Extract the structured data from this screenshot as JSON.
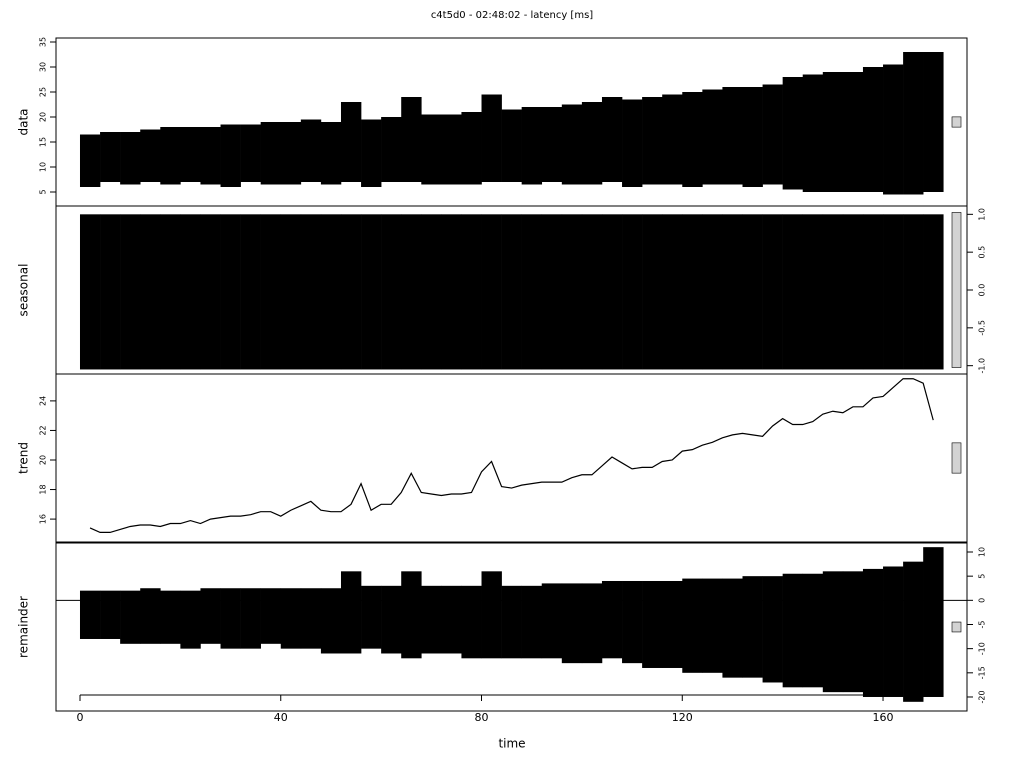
{
  "chart_data": [
    {
      "type": "band",
      "title": "c4t5d0 - 02:48:02 - latency [ms]",
      "ylabel": "data",
      "axis_side": "left",
      "color": "#000000",
      "xlim": [
        -4.78,
        176.73
      ],
      "ylim": [
        2.2,
        35.8
      ],
      "yticks": [
        5,
        10,
        15,
        20,
        25,
        30,
        35
      ],
      "x": [
        2,
        6,
        10,
        14,
        18,
        22,
        26,
        30,
        34,
        38,
        42,
        46,
        50,
        54,
        58,
        62,
        66,
        70,
        74,
        78,
        82,
        86,
        90,
        94,
        98,
        102,
        106,
        110,
        114,
        118,
        122,
        126,
        130,
        134,
        138,
        142,
        146,
        150,
        154,
        158,
        162,
        166,
        170
      ],
      "upper": [
        16.5,
        17,
        17,
        17.5,
        18,
        18,
        18,
        18.5,
        18.5,
        19,
        19,
        19.5,
        19,
        23,
        19.5,
        20,
        24,
        20.5,
        20.5,
        21,
        24.5,
        21.5,
        22,
        22,
        22.5,
        23,
        24,
        23.5,
        24,
        24.5,
        25,
        25.5,
        26,
        26,
        26.5,
        28,
        28.5,
        29,
        29,
        30,
        30.5,
        33,
        33
      ],
      "lower": [
        6,
        7,
        6.5,
        7,
        6.5,
        7,
        6.5,
        6,
        7,
        6.5,
        6.5,
        7,
        6.5,
        7,
        6,
        7,
        7,
        6.5,
        6.5,
        6.5,
        7,
        7,
        6.5,
        7,
        6.5,
        6.5,
        7,
        6,
        6.5,
        6.5,
        6,
        6.5,
        6.5,
        6,
        6.5,
        5.5,
        5,
        5,
        5,
        5,
        4.5,
        4.5,
        5
      ]
    },
    {
      "type": "band",
      "ylabel": "seasonal",
      "axis_side": "right",
      "color": "#000000",
      "xlim": [
        -4.78,
        176.73
      ],
      "ylim": [
        -1.11,
        1.11
      ],
      "yticks": [
        {
          "value": -1,
          "label": "-1.0"
        },
        {
          "value": -0.5,
          "label": "-0.5"
        },
        {
          "value": 0,
          "label": "0.0"
        },
        {
          "value": 0.5,
          "label": "0.5"
        },
        {
          "value": 1,
          "label": "1.0"
        }
      ],
      "x": [
        2,
        6,
        10,
        14,
        18,
        22,
        26,
        30,
        34,
        38,
        42,
        46,
        50,
        54,
        58,
        62,
        66,
        70,
        74,
        78,
        82,
        86,
        90,
        94,
        98,
        102,
        106,
        110,
        114,
        118,
        122,
        126,
        130,
        134,
        138,
        142,
        146,
        150,
        154,
        158,
        162,
        166,
        170
      ],
      "upper": [
        1.0,
        1.0,
        1.0,
        1.0,
        1.0,
        1.0,
        1.0,
        1.0,
        1.0,
        1.0,
        1.0,
        1.0,
        1.0,
        1.0,
        1.0,
        1.0,
        1.0,
        1.0,
        1.0,
        1.0,
        1.0,
        1.0,
        1.0,
        1.0,
        1.0,
        1.0,
        1.0,
        1.0,
        1.0,
        1.0,
        1.0,
        1.0,
        1.0,
        1.0,
        1.0,
        1.0,
        1.0,
        1.0,
        1.0,
        1.0,
        1.0,
        1.0,
        1.0
      ],
      "lower": [
        -1.05,
        -1.05,
        -1.05,
        -1.05,
        -1.05,
        -1.05,
        -1.05,
        -1.05,
        -1.05,
        -1.05,
        -1.05,
        -1.05,
        -1.05,
        -1.05,
        -1.05,
        -1.05,
        -1.05,
        -1.05,
        -1.05,
        -1.05,
        -1.05,
        -1.05,
        -1.05,
        -1.05,
        -1.05,
        -1.05,
        -1.05,
        -1.05,
        -1.05,
        -1.05,
        -1.05,
        -1.05,
        -1.05,
        -1.05,
        -1.05,
        -1.05,
        -1.05,
        -1.05,
        -1.05,
        -1.05,
        -1.05,
        -1.05,
        -1.05
      ]
    },
    {
      "type": "line",
      "ylabel": "trend",
      "axis_side": "left",
      "color": "#000000",
      "xlim": [
        -4.78,
        176.73
      ],
      "ylim": [
        14.45,
        25.82
      ],
      "yticks": [
        16,
        18,
        20,
        22,
        24
      ],
      "x": [
        2,
        4,
        6,
        8,
        10,
        12,
        14,
        16,
        18,
        20,
        22,
        24,
        26,
        28,
        30,
        32,
        34,
        36,
        38,
        40,
        42,
        44,
        46,
        48,
        50,
        52,
        54,
        56,
        58,
        60,
        62,
        64,
        66,
        68,
        70,
        72,
        74,
        76,
        78,
        80,
        82,
        84,
        86,
        88,
        90,
        92,
        94,
        96,
        98,
        100,
        102,
        104,
        106,
        108,
        110,
        112,
        114,
        116,
        118,
        120,
        122,
        124,
        126,
        128,
        130,
        132,
        134,
        136,
        138,
        140,
        142,
        144,
        146,
        148,
        150,
        152,
        154,
        156,
        158,
        160,
        162,
        164,
        166,
        168,
        170
      ],
      "values": [
        15.4,
        15.1,
        15.1,
        15.3,
        15.5,
        15.6,
        15.6,
        15.5,
        15.7,
        15.7,
        15.9,
        15.7,
        16.0,
        16.1,
        16.2,
        16.2,
        16.3,
        16.5,
        16.5,
        16.2,
        16.6,
        16.9,
        17.2,
        16.6,
        16.5,
        16.5,
        17.0,
        18.4,
        16.6,
        17.0,
        17.0,
        17.8,
        19.1,
        17.8,
        17.7,
        17.6,
        17.7,
        17.7,
        17.8,
        19.2,
        19.9,
        18.2,
        18.1,
        18.3,
        18.4,
        18.5,
        18.5,
        18.5,
        18.8,
        19.0,
        19.0,
        19.6,
        20.2,
        19.8,
        19.4,
        19.5,
        19.5,
        19.9,
        20.0,
        20.6,
        20.7,
        21.0,
        21.2,
        21.5,
        21.7,
        21.8,
        21.7,
        21.6,
        22.3,
        22.8,
        22.4,
        22.4,
        22.6,
        23.1,
        23.3,
        23.2,
        23.6,
        23.6,
        24.2,
        24.3,
        24.9,
        25.5,
        25.5,
        25.2,
        22.7
      ]
    },
    {
      "type": "band",
      "ylabel": "remainder",
      "axis_side": "right",
      "color": "#000000",
      "xlabel": "time",
      "xlim": [
        -4.78,
        176.73
      ],
      "xticks": [
        0,
        40,
        80,
        120,
        160
      ],
      "ylim": [
        -22.9,
        11.86
      ],
      "yticks": [
        -20,
        -15,
        -10,
        -5,
        0,
        5,
        10
      ],
      "x": [
        2,
        6,
        10,
        14,
        18,
        22,
        26,
        30,
        34,
        38,
        42,
        46,
        50,
        54,
        58,
        62,
        66,
        70,
        74,
        78,
        82,
        86,
        90,
        94,
        98,
        102,
        106,
        110,
        114,
        118,
        122,
        126,
        130,
        134,
        138,
        142,
        146,
        150,
        154,
        158,
        162,
        166,
        170
      ],
      "upper": [
        2,
        2,
        2,
        2.5,
        2,
        2,
        2.5,
        2.5,
        2.5,
        2.5,
        2.5,
        2.5,
        2.5,
        6,
        3,
        3,
        6,
        3,
        3,
        3,
        6,
        3,
        3,
        3.5,
        3.5,
        3.5,
        4,
        4,
        4,
        4,
        4.5,
        4.5,
        4.5,
        5,
        5,
        5.5,
        5.5,
        6,
        6,
        6.5,
        7,
        8,
        11
      ],
      "lower": [
        -8,
        -8,
        -9,
        -9,
        -9,
        -10,
        -9,
        -10,
        -10,
        -9,
        -10,
        -10,
        -11,
        -11,
        -10,
        -11,
        -12,
        -11,
        -11,
        -12,
        -12,
        -12,
        -12,
        -12,
        -13,
        -13,
        -12,
        -13,
        -14,
        -14,
        -15,
        -15,
        -16,
        -16,
        -17,
        -18,
        -18,
        -19,
        -19,
        -20,
        -20,
        -21,
        -20
      ]
    }
  ]
}
